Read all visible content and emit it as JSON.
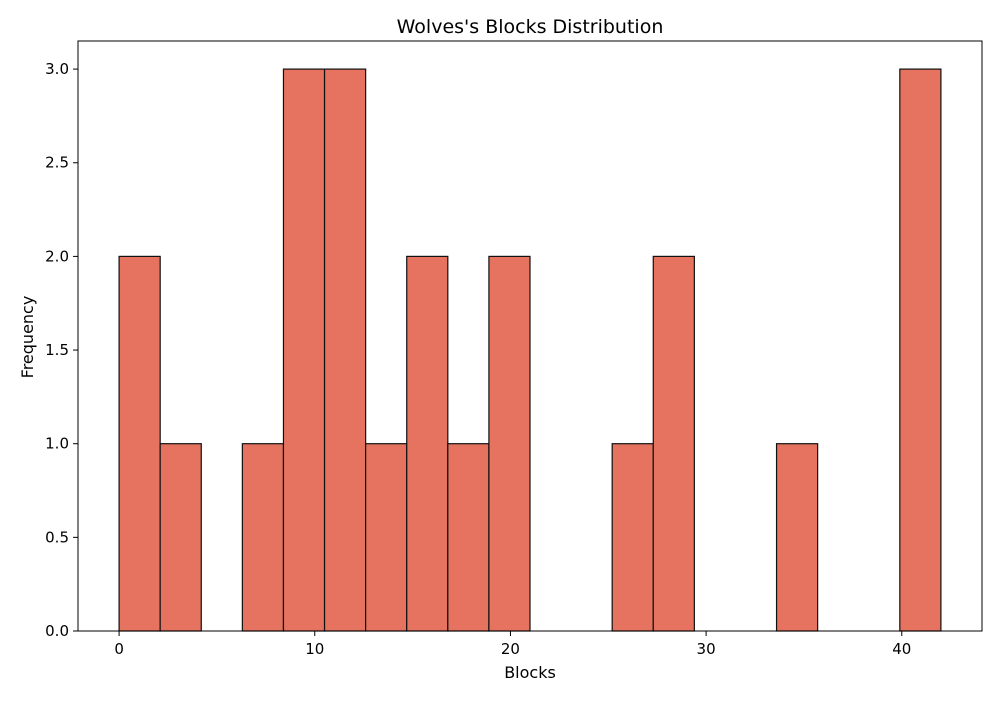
{
  "chart_data": {
    "type": "bar",
    "title": "Wolves's Blocks Distribution",
    "xlabel": "Blocks",
    "ylabel": "Frequency",
    "bar_color": "#e5735f",
    "edge_color": "#111111",
    "xlim": [
      -2.1,
      44.1
    ],
    "ylim": [
      0,
      3.15
    ],
    "xticks": [
      0,
      10,
      20,
      30,
      40
    ],
    "xtick_labels": [
      "0",
      "10",
      "20",
      "30",
      "40"
    ],
    "yticks": [
      0,
      0.5,
      1.0,
      1.5,
      2.0,
      2.5,
      3.0
    ],
    "ytick_labels": [
      "0.0",
      "0.5",
      "1.0",
      "1.5",
      "2.0",
      "2.5",
      "3.0"
    ],
    "grid": false,
    "bins": [
      {
        "start": 0.0,
        "end": 2.1,
        "count": 2
      },
      {
        "start": 2.1,
        "end": 4.2,
        "count": 1
      },
      {
        "start": 4.2,
        "end": 6.3,
        "count": 0
      },
      {
        "start": 6.3,
        "end": 8.4,
        "count": 1
      },
      {
        "start": 8.4,
        "end": 10.5,
        "count": 3
      },
      {
        "start": 10.5,
        "end": 12.6,
        "count": 3
      },
      {
        "start": 12.6,
        "end": 14.7,
        "count": 1
      },
      {
        "start": 14.7,
        "end": 16.8,
        "count": 2
      },
      {
        "start": 16.8,
        "end": 18.9,
        "count": 1
      },
      {
        "start": 18.9,
        "end": 21.0,
        "count": 2
      },
      {
        "start": 21.0,
        "end": 23.1,
        "count": 0
      },
      {
        "start": 23.1,
        "end": 25.2,
        "count": 0
      },
      {
        "start": 25.2,
        "end": 27.3,
        "count": 1
      },
      {
        "start": 27.3,
        "end": 29.4,
        "count": 2
      },
      {
        "start": 29.4,
        "end": 31.5,
        "count": 0
      },
      {
        "start": 31.5,
        "end": 33.6,
        "count": 0
      },
      {
        "start": 33.6,
        "end": 35.7,
        "count": 1
      },
      {
        "start": 35.7,
        "end": 37.8,
        "count": 0
      },
      {
        "start": 37.8,
        "end": 39.9,
        "count": 0
      },
      {
        "start": 39.9,
        "end": 42.0,
        "count": 3
      }
    ]
  }
}
